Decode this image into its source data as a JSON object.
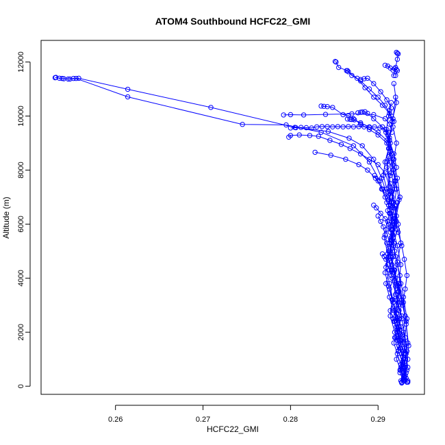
{
  "chart_data": {
    "type": "scatter",
    "title": "ATOM4 Southbound HCFC22_GMI",
    "xlabel": "HCFC22_GMI",
    "ylabel": "Altitude (m)",
    "xlim": [
      0.2515,
      0.2953
    ],
    "ylim": [
      -300,
      12800
    ],
    "xticks": [
      0.26,
      0.27,
      0.28,
      0.29
    ],
    "xtick_labels": [
      "0.26",
      "0.27",
      "0.28",
      "0.29"
    ],
    "yticks": [
      0,
      2000,
      4000,
      6000,
      8000,
      10000,
      12000
    ],
    "ytick_labels": [
      "0",
      "2000",
      "4000",
      "6000",
      "8000",
      "10000",
      "12000"
    ],
    "grid": false,
    "legend": "none",
    "series_color": "#0000ff",
    "series": [
      {
        "x": [
          0.2532,
          0.2536,
          0.2541,
          0.2546,
          0.2552,
          0.2558,
          0.2614,
          0.2709,
          0.2805,
          0.2843,
          0.2867,
          0.2882,
          0.2895,
          0.2904,
          0.2911
        ],
        "y": [
          11430,
          11400,
          11380,
          11370,
          11390,
          11400,
          10990,
          10320,
          9580,
          9430,
          9180,
          8900,
          8400,
          7700,
          7000
        ]
      },
      {
        "x": [
          0.2531,
          0.2539,
          0.2548,
          0.2555,
          0.2614,
          0.2745,
          0.2795,
          0.2835,
          0.2872,
          0.289,
          0.2902,
          0.291
        ],
        "y": [
          11420,
          11390,
          11370,
          11390,
          10710,
          9690,
          9670,
          9400,
          8900,
          8300,
          7600,
          6800
        ]
      },
      {
        "x": [
          0.2792,
          0.28,
          0.2815,
          0.284,
          0.287,
          0.2895,
          0.2908,
          0.2913,
          0.2916
        ],
        "y": [
          10040,
          10050,
          10040,
          10060,
          10080,
          10050,
          9900,
          9700,
          9400
        ]
      },
      {
        "x": [
          0.28,
          0.2806,
          0.2812,
          0.2818,
          0.2824,
          0.283,
          0.2836,
          0.2842,
          0.2848,
          0.2854,
          0.286,
          0.2866,
          0.2872,
          0.2878,
          0.2884,
          0.289,
          0.2896,
          0.2902,
          0.2908,
          0.2912
        ],
        "y": [
          9560,
          9570,
          9580,
          9570,
          9560,
          9600,
          9610,
          9610,
          9600,
          9610,
          9600,
          9610,
          9600,
          9610,
          9600,
          9580,
          9600,
          9560,
          9500,
          9400
        ]
      },
      {
        "x": [
          0.2798,
          0.28,
          0.281,
          0.2822,
          0.2832,
          0.2845,
          0.2858,
          0.2868,
          0.288,
          0.289,
          0.29,
          0.2908,
          0.2913
        ],
        "y": [
          9220,
          9280,
          9300,
          9280,
          9250,
          9100,
          8950,
          8800,
          8600,
          8400,
          8200,
          7900,
          7400
        ]
      },
      {
        "x": [
          0.2828,
          0.2846,
          0.2863,
          0.2878,
          0.2888,
          0.2897,
          0.2905,
          0.2912
        ],
        "y": [
          8660,
          8550,
          8400,
          8200,
          8000,
          7700,
          7300,
          6900
        ]
      },
      {
        "x": [
          0.2835,
          0.2838,
          0.2842,
          0.2848,
          0.286,
          0.2866,
          0.2872,
          0.288,
          0.289,
          0.29,
          0.291,
          0.2915
        ],
        "y": [
          10370,
          10360,
          10350,
          10320,
          10050,
          10020,
          9900,
          9700,
          9500,
          9300,
          9000,
          8600
        ]
      },
      {
        "x": [
          0.2851,
          0.2852,
          0.2855,
          0.2865,
          0.2876,
          0.2885,
          0.2895,
          0.2905,
          0.2913,
          0.2918
        ],
        "y": [
          12020,
          12000,
          11800,
          11680,
          11400,
          11050,
          10700,
          10400,
          10100,
          9800
        ]
      },
      {
        "x": [
          0.2864,
          0.2866,
          0.287,
          0.288,
          0.289,
          0.29,
          0.2908,
          0.2915
        ],
        "y": [
          11680,
          11640,
          11500,
          11300,
          11000,
          10700,
          10400,
          10000
        ]
      },
      {
        "x": [
          0.2877,
          0.288,
          0.2882,
          0.2885,
          0.2888,
          0.2895,
          0.2905,
          0.2913
        ],
        "y": [
          10120,
          10140,
          10150,
          10160,
          10100,
          9900,
          9600,
          9200
        ]
      },
      {
        "x": [
          0.2865,
          0.2868,
          0.287,
          0.2873,
          0.288,
          0.289,
          0.29,
          0.291
        ],
        "y": [
          9890,
          9880,
          9870,
          9860,
          9750,
          9600,
          9400,
          9100
        ]
      },
      {
        "x": [
          0.288,
          0.2884,
          0.2888,
          0.2895,
          0.2903,
          0.291,
          0.2915
        ],
        "y": [
          11350,
          11380,
          11400,
          11200,
          10900,
          10600,
          10300
        ]
      },
      {
        "x": [
          0.2908,
          0.2911,
          0.2914,
          0.2917,
          0.2919,
          0.2921,
          0.2922,
          0.292
        ],
        "y": [
          11880,
          11850,
          11780,
          11700,
          11750,
          11720,
          11680,
          11500
        ]
      },
      {
        "x": [
          0.2921,
          0.2922,
          0.2923,
          0.2922,
          0.292,
          0.2918
        ],
        "y": [
          12360,
          12320,
          12300,
          12100,
          11800,
          11500
        ]
      },
      {
        "x": [
          0.2896,
          0.29,
          0.2904,
          0.2908,
          0.2912,
          0.2914,
          0.2916,
          0.2915
        ],
        "y": [
          7800,
          7600,
          7300,
          7000,
          6700,
          6400,
          6100,
          5800
        ]
      },
      {
        "x": [
          0.2895,
          0.2898,
          0.2903,
          0.2908,
          0.2912,
          0.2914
        ],
        "y": [
          6700,
          6600,
          6400,
          6200,
          6000,
          5700
        ]
      },
      {
        "x": [
          0.29,
          0.2903,
          0.2906,
          0.2908,
          0.291,
          0.2912
        ],
        "y": [
          6300,
          6100,
          5900,
          5600,
          5300,
          5000
        ]
      },
      {
        "x": [
          0.2905,
          0.2907,
          0.2909,
          0.2911,
          0.2913,
          0.2915
        ],
        "y": [
          4900,
          4800,
          4700,
          4500,
          4300,
          4100
        ]
      },
      {
        "x": [
          0.291,
          0.2914,
          0.2918,
          0.2921,
          0.2919,
          0.2915,
          0.2912,
          0.2917,
          0.2923,
          0.2927,
          0.293,
          0.2933,
          0.2931,
          0.2928,
          0.2932,
          0.2934,
          0.293,
          0.2926
        ],
        "y": [
          9500,
          9000,
          8600,
          8100,
          7600,
          7200,
          6700,
          6200,
          5700,
          5200,
          4700,
          4100,
          3600,
          3000,
          2400,
          1600,
          900,
          200
        ]
      },
      {
        "x": [
          0.2912,
          0.2908,
          0.2906,
          0.291,
          0.2915,
          0.2919,
          0.2922,
          0.2918,
          0.2914,
          0.2918,
          0.2923,
          0.2927,
          0.2931,
          0.2929,
          0.2933,
          0.293,
          0.2927
        ],
        "y": [
          8800,
          8300,
          7800,
          7300,
          6800,
          6300,
          5800,
          5300,
          4800,
          4300,
          3800,
          3200,
          2600,
          2000,
          1300,
          700,
          150
        ]
      },
      {
        "x": [
          0.2915,
          0.2912,
          0.2909,
          0.2913,
          0.2917,
          0.292,
          0.2916,
          0.2913,
          0.2917,
          0.2922,
          0.2926,
          0.2924,
          0.2929,
          0.2932,
          0.2935,
          0.2931
        ],
        "y": [
          10500,
          10000,
          9400,
          8800,
          8200,
          7600,
          7000,
          6400,
          5800,
          5200,
          4500,
          3800,
          3100,
          2300,
          1500,
          400
        ]
      },
      {
        "x": [
          0.2918,
          0.2921,
          0.2916,
          0.2912,
          0.2915,
          0.292,
          0.2924,
          0.2919,
          0.2915,
          0.292,
          0.2925,
          0.2929,
          0.2933,
          0.293,
          0.2934
        ],
        "y": [
          11200,
          10500,
          9800,
          9000,
          8300,
          7600,
          6900,
          6200,
          5500,
          4800,
          4100,
          3300,
          2500,
          1600,
          700
        ]
      },
      {
        "x": [
          0.2913,
          0.2917,
          0.2921,
          0.2918,
          0.2914,
          0.2911,
          0.2915,
          0.2919,
          0.2916,
          0.2912,
          0.2908,
          0.2912,
          0.2916,
          0.2921,
          0.2926,
          0.2922,
          0.2927,
          0.2931,
          0.2929
        ],
        "y": [
          10200,
          9600,
          9000,
          8400,
          7800,
          7200,
          6600,
          6000,
          5400,
          4800,
          4200,
          3700,
          3200,
          2700,
          2200,
          1700,
          1200,
          700,
          250
        ]
      },
      {
        "x": [
          0.2916,
          0.2913,
          0.2917,
          0.2922,
          0.2925,
          0.2921,
          0.2917,
          0.2914,
          0.2918,
          0.2923,
          0.292,
          0.2925,
          0.293,
          0.2928,
          0.2932
        ],
        "y": [
          9800,
          9100,
          8400,
          7700,
          7000,
          6300,
          5600,
          4900,
          4200,
          3500,
          2800,
          2100,
          1400,
          800,
          300
        ]
      },
      {
        "x": [
          0.2911,
          0.2914,
          0.291,
          0.2913,
          0.2918,
          0.2921,
          0.2917,
          0.2914,
          0.2919,
          0.2923,
          0.2927,
          0.2924,
          0.2928,
          0.2932,
          0.2929
        ],
        "y": [
          9300,
          8700,
          8100,
          7400,
          6800,
          6100,
          5500,
          4900,
          4300,
          3700,
          3100,
          2500,
          1900,
          1200,
          500
        ]
      },
      {
        "x": [
          0.292,
          0.2917,
          0.2913,
          0.291,
          0.2914,
          0.2919,
          0.2923,
          0.2926,
          0.2922,
          0.2918,
          0.2922,
          0.2927,
          0.2931,
          0.2934,
          0.293
        ],
        "y": [
          10700,
          9900,
          9100,
          8300,
          7500,
          6700,
          6000,
          5300,
          4600,
          3900,
          3200,
          2500,
          1800,
          1000,
          350
        ]
      },
      {
        "x": [
          0.2912,
          0.2915,
          0.2919,
          0.2915,
          0.2911,
          0.2907,
          0.2911,
          0.2916,
          0.292,
          0.2917,
          0.2921,
          0.2925,
          0.2929,
          0.2926,
          0.293
        ],
        "y": [
          8500,
          7900,
          7300,
          6700,
          6100,
          5500,
          4900,
          4300,
          3700,
          3100,
          2500,
          1900,
          1300,
          700,
          200
        ]
      },
      {
        "x": [
          0.2917,
          0.2921,
          0.2918,
          0.2914,
          0.2918,
          0.2922,
          0.2926,
          0.2923,
          0.2919,
          0.2924,
          0.2928,
          0.2925,
          0.293,
          0.2933
        ],
        "y": [
          8000,
          7300,
          6600,
          5900,
          5200,
          4500,
          3800,
          3100,
          2400,
          1700,
          1100,
          600,
          300,
          150
        ]
      },
      {
        "x": [
          0.2914,
          0.2911,
          0.2915,
          0.2912,
          0.2909,
          0.2913,
          0.2917,
          0.2914,
          0.2919,
          0.2924,
          0.2921,
          0.2926,
          0.293,
          0.2927
        ],
        "y": [
          7200,
          6500,
          5800,
          5100,
          4400,
          3800,
          3200,
          2600,
          2000,
          1500,
          1000,
          600,
          250,
          120
        ]
      },
      {
        "x": [
          0.2922,
          0.2919,
          0.2915,
          0.2912,
          0.2916,
          0.292,
          0.2924,
          0.2921,
          0.2925,
          0.2929,
          0.2926,
          0.2931,
          0.2934
        ],
        "y": [
          6800,
          6100,
          5400,
          4700,
          4000,
          3400,
          2800,
          2200,
          1700,
          1200,
          800,
          400,
          200
        ]
      },
      {
        "x": [
          0.2909,
          0.2913,
          0.2917,
          0.2913,
          0.2909,
          0.2913,
          0.2918,
          0.2922,
          0.2919,
          0.2923,
          0.2928,
          0.2925,
          0.2929
        ],
        "y": [
          5800,
          5300,
          4800,
          4300,
          3800,
          3300,
          2800,
          2300,
          1800,
          1300,
          900,
          500,
          200
        ]
      },
      {
        "x": [
          0.2919,
          0.2916,
          0.292,
          0.2924,
          0.2921,
          0.2917,
          0.2922,
          0.2926,
          0.2923,
          0.2928,
          0.2932,
          0.2929
        ],
        "y": [
          5000,
          4500,
          4000,
          3500,
          3000,
          2500,
          2100,
          1700,
          1300,
          900,
          500,
          250
        ]
      },
      {
        "x": [
          0.2913,
          0.2917,
          0.2914,
          0.2918,
          0.2922,
          0.2918,
          0.2922,
          0.2926,
          0.2931,
          0.2927
        ],
        "y": [
          3600,
          3200,
          2800,
          2400,
          2000,
          1600,
          1200,
          800,
          400,
          150
        ]
      },
      {
        "x": [
          0.2923,
          0.2927,
          0.2924,
          0.292,
          0.2925,
          0.2929,
          0.2933,
          0.293,
          0.2934
        ],
        "y": [
          3000,
          2600,
          2200,
          1800,
          1400,
          1000,
          600,
          300,
          150
        ]
      }
    ]
  }
}
